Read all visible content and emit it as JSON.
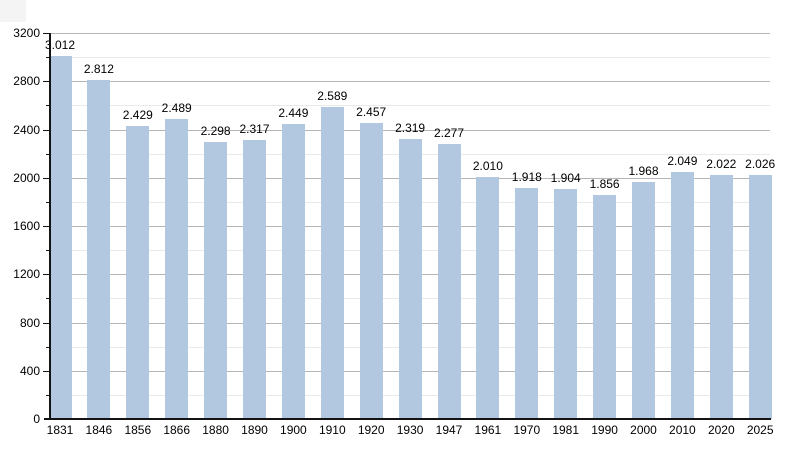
{
  "chart_data": {
    "type": "bar",
    "title": "",
    "xlabel": "",
    "ylabel": "",
    "categories": [
      "1831",
      "1846",
      "1856",
      "1866",
      "1880",
      "1890",
      "1900",
      "1910",
      "1920",
      "1930",
      "1947",
      "1961",
      "1970",
      "1981",
      "1990",
      "2000",
      "2010",
      "2020",
      "2025"
    ],
    "values": [
      3012,
      2812,
      2429,
      2489,
      2298,
      2317,
      2449,
      2589,
      2457,
      2319,
      2277,
      2010,
      1918,
      1904,
      1856,
      1968,
      2049,
      2022,
      2026
    ],
    "value_labels": [
      "3.012",
      "2.812",
      "2.429",
      "2.489",
      "2.298",
      "2.317",
      "2.449",
      "2.589",
      "2.457",
      "2.319",
      "2.277",
      "2.010",
      "1.918",
      "1.904",
      "1.856",
      "1.968",
      "2.049",
      "2.022",
      "2.026"
    ],
    "ylim": [
      0,
      3200
    ],
    "ytick_step_major": 400,
    "ytick_step_minor": 200,
    "ytick_labels": [
      "0",
      "400",
      "800",
      "1200",
      "1600",
      "2000",
      "2400",
      "2800",
      "3200"
    ],
    "grid": true,
    "legend_position": "none",
    "bar_color": "#b2c8e0",
    "grid_major_color": "#b5b5b5",
    "grid_minor_color": "#e9e9e9",
    "axis_color": "#141414",
    "text_color": "#000000"
  }
}
